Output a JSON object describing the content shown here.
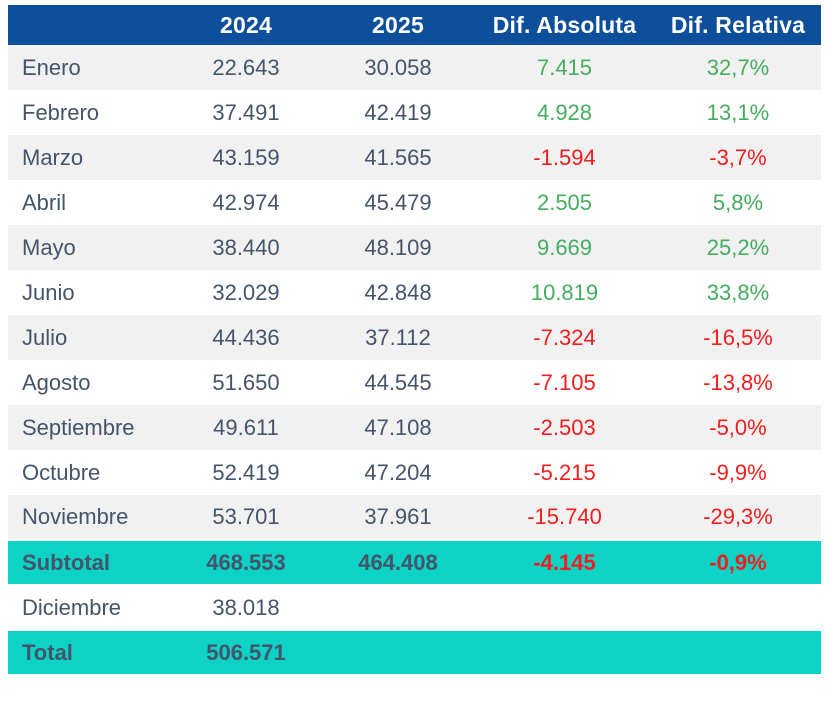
{
  "chart_data": {
    "type": "table",
    "columns": {
      "month": "",
      "y2024": "2024",
      "y2025": "2025",
      "dif_abs": "Dif. Absoluta",
      "dif_rel": "Dif. Relativa"
    },
    "rows": [
      {
        "label": "Enero",
        "v2024": "22.643",
        "v2025": "30.058",
        "dif_abs": "7.415",
        "dif_rel": "32,7%",
        "trend": "positive",
        "shade": "gray",
        "kind": "month-row"
      },
      {
        "label": "Febrero",
        "v2024": "37.491",
        "v2025": "42.419",
        "dif_abs": "4.928",
        "dif_rel": "13,1%",
        "trend": "positive",
        "shade": "white",
        "kind": "month-row"
      },
      {
        "label": "Marzo",
        "v2024": "43.159",
        "v2025": "41.565",
        "dif_abs": "-1.594",
        "dif_rel": "-3,7%",
        "trend": "negative",
        "shade": "gray",
        "kind": "month-row"
      },
      {
        "label": "Abril",
        "v2024": "42.974",
        "v2025": "45.479",
        "dif_abs": "2.505",
        "dif_rel": "5,8%",
        "trend": "positive",
        "shade": "white",
        "kind": "month-row"
      },
      {
        "label": "Mayo",
        "v2024": "38.440",
        "v2025": "48.109",
        "dif_abs": "9.669",
        "dif_rel": "25,2%",
        "trend": "positive",
        "shade": "gray",
        "kind": "month-row"
      },
      {
        "label": "Junio",
        "v2024": "32.029",
        "v2025": "42.848",
        "dif_abs": "10.819",
        "dif_rel": "33,8%",
        "trend": "positive",
        "shade": "white",
        "kind": "month-row"
      },
      {
        "label": "Julio",
        "v2024": "44.436",
        "v2025": "37.112",
        "dif_abs": "-7.324",
        "dif_rel": "-16,5%",
        "trend": "negative",
        "shade": "gray",
        "kind": "month-row"
      },
      {
        "label": "Agosto",
        "v2024": "51.650",
        "v2025": "44.545",
        "dif_abs": "-7.105",
        "dif_rel": "-13,8%",
        "trend": "negative",
        "shade": "white",
        "kind": "month-row"
      },
      {
        "label": "Septiembre",
        "v2024": "49.611",
        "v2025": "47.108",
        "dif_abs": "-2.503",
        "dif_rel": "-5,0%",
        "trend": "negative",
        "shade": "gray",
        "kind": "month-row"
      },
      {
        "label": "Octubre",
        "v2024": "52.419",
        "v2025": "47.204",
        "dif_abs": "-5.215",
        "dif_rel": "-9,9%",
        "trend": "negative",
        "shade": "white",
        "kind": "month-row"
      },
      {
        "label": "Noviembre",
        "v2024": "53.701",
        "v2025": "37.961",
        "dif_abs": "-15.740",
        "dif_rel": "-29,3%",
        "trend": "negative",
        "shade": "gray",
        "kind": "month-row"
      },
      {
        "label": "Subtotal",
        "v2024": "468.553",
        "v2025": "464.408",
        "dif_abs": "-4.145",
        "dif_rel": "-0,9%",
        "trend": "negative",
        "shade": "teal",
        "kind": "subtotal-row"
      },
      {
        "label": "Diciembre",
        "v2024": "38.018",
        "v2025": "",
        "dif_abs": "",
        "dif_rel": "",
        "trend": null,
        "shade": "white",
        "kind": "month-row"
      },
      {
        "label": "Total",
        "v2024": "506.571",
        "v2025": "",
        "dif_abs": "",
        "dif_rel": "",
        "trend": null,
        "shade": "teal",
        "kind": "total-row"
      }
    ]
  },
  "colors": {
    "header_bg": "#0d4f9b",
    "header_text": "#ffffff",
    "teal_bg": "#0cd3c6",
    "row_alt_bg": "#f2f1f1",
    "text": "#44546a",
    "positive": "#45ad5f",
    "negative": "#f21d1d"
  }
}
